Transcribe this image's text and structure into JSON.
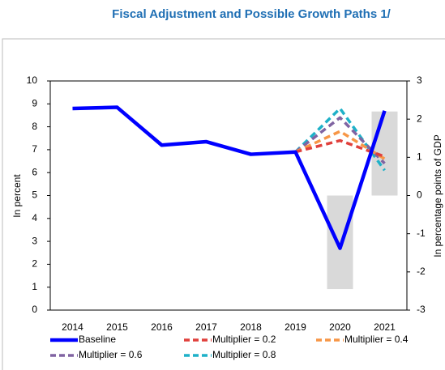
{
  "chart_data": {
    "type": "line",
    "title": "Fiscal Adjustment and Possible Growth Paths 1/",
    "ylabel": "In percent",
    "y2label": "In percentage points of GDP",
    "categories": [
      "2014",
      "2015",
      "2016",
      "2017",
      "2018",
      "2019",
      "2020",
      "2021"
    ],
    "ylim": [
      0,
      10
    ],
    "yticks": [
      0,
      1,
      2,
      3,
      4,
      5,
      6,
      7,
      8,
      9,
      10
    ],
    "y2lim": [
      -3,
      3
    ],
    "y2ticks": [
      -3,
      -2,
      -1,
      0,
      1,
      2,
      3
    ],
    "bars": {
      "axis": "y2",
      "color": "#d9d9d9",
      "values": [
        null,
        null,
        null,
        null,
        null,
        null,
        -2.45,
        2.2
      ]
    },
    "series": [
      {
        "name": "Baseline",
        "color": "#0000ff",
        "dashed": false,
        "values": [
          8.8,
          8.85,
          7.2,
          7.35,
          6.8,
          6.9,
          2.7,
          8.7
        ]
      },
      {
        "name": "Multiplier = 0.2",
        "color": "#e0403c",
        "dashed": true,
        "values": [
          null,
          null,
          null,
          null,
          null,
          6.9,
          7.4,
          6.7
        ]
      },
      {
        "name": "Multiplier = 0.4",
        "color": "#f79646",
        "dashed": true,
        "values": [
          null,
          null,
          null,
          null,
          null,
          6.9,
          7.8,
          6.6
        ]
      },
      {
        "name": "Multiplier = 0.6",
        "color": "#8064a2",
        "dashed": true,
        "values": [
          null,
          null,
          null,
          null,
          null,
          6.9,
          8.4,
          6.4
        ]
      },
      {
        "name": "Multiplier = 0.8",
        "color": "#1fb1c8",
        "dashed": true,
        "values": [
          null,
          null,
          null,
          null,
          null,
          6.9,
          8.8,
          6.1
        ]
      }
    ]
  }
}
